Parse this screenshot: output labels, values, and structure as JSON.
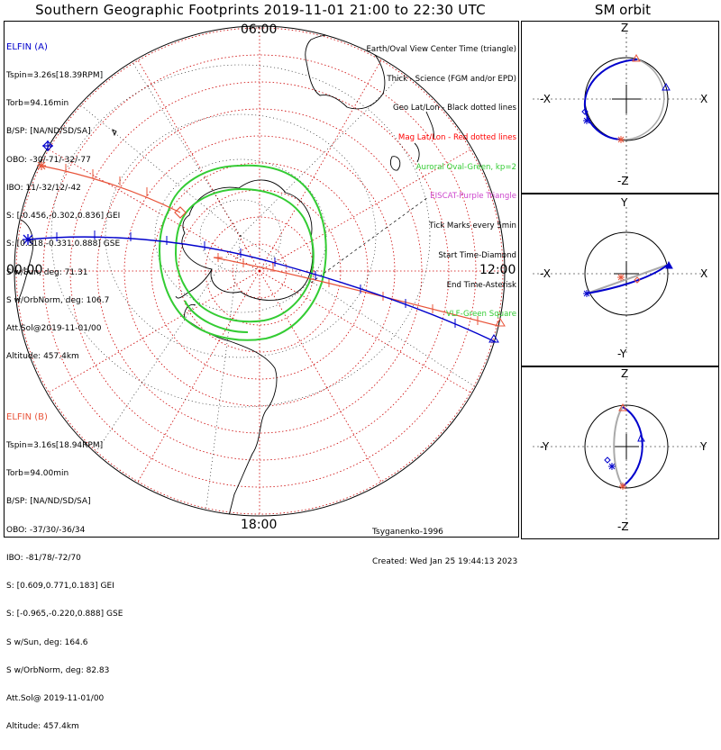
{
  "title": "Southern Geographic Footprints 2019-11-01 21:00 to 22:30 UTC",
  "sm_title": "SM orbit",
  "colors": {
    "elfin_a": "#0000cc",
    "elfin_b": "#e8543a",
    "aurora": "#33cc33",
    "grid": "#cc0000",
    "coast": "#000000",
    "orbit_gray": "#aaaaaa"
  },
  "mlt_labels": [
    "00:00",
    "06:00",
    "12:00",
    "18:00"
  ],
  "elfin_a": {
    "header": "ELFIN (A)",
    "lines": [
      "Tspin=3.26s[18.39RPM]",
      "Torb=94.16min",
      "B/SP: [NA/ND/SD/SA]",
      "OBO: -30/-71/-32/-77",
      "IBO: 11/-32/12/-42",
      "S: [-0.456,-0.302,0.836] GEI",
      "S: [0.318,-0.331,0.888] GSE",
      "S w/Sun, deg: 71.31",
      "S w/OrbNorm, deg: 106.7",
      "Att.Sol@2019-11-01/00",
      "Altitude: 457.4km"
    ]
  },
  "elfin_b": {
    "header": "ELFIN (B)",
    "lines": [
      "Tspin=3.16s[18.94RPM]",
      "Torb=94.00min",
      "B/SP: [NA/ND/SD/SA]",
      "OBO: -37/30/-36/34",
      "IBO: -81/78/-72/70",
      "S: [0.609,0.771,0.183] GEI",
      "S: [-0.965,-0.220,0.888] GSE",
      "S w/Sun, deg: 164.6",
      "S w/OrbNorm, deg: 82.83",
      "Att.Sol@ 2019-11-01/00",
      "Altitude: 457.4km"
    ]
  },
  "legend": [
    {
      "text": "Earth/Oval View Center Time (triangle)",
      "color": "#000000"
    },
    {
      "text": "Thick - Science (FGM and/or EPD)",
      "color": "#000000"
    },
    {
      "text": "Geo Lat/Lon - Black dotted lines",
      "color": "#000000"
    },
    {
      "text": "Mag Lat/Lon - Red dotted lines",
      "color": "#ff0000"
    },
    {
      "text": "Auroral Oval-Green, kp=2",
      "color": "#33cc33"
    },
    {
      "text": "EISCAT-Purple Triangle",
      "color": "#cc44cc"
    },
    {
      "text": "Tick Marks every 5min",
      "color": "#000000"
    },
    {
      "text": "Start Time-Diamond",
      "color": "#000000"
    },
    {
      "text": "End Time-Asterisk",
      "color": "#000000"
    },
    {
      "text": "VLF-Green Square",
      "color": "#33cc33"
    }
  ],
  "footer": {
    "credit": "Tsyganenko-1996",
    "created": "Created: Wed Jan 25 19:44:13 2023"
  },
  "sm_panels": [
    {
      "name": "XZ",
      "top": "Z",
      "bottom": "-Z",
      "left": "-X",
      "right": "X"
    },
    {
      "name": "XY",
      "top": "Y",
      "bottom": "-Y",
      "left": "-X",
      "right": "X"
    },
    {
      "name": "YZ",
      "top": "Z",
      "bottom": "-Z",
      "left": "-Y",
      "right": "Y"
    }
  ]
}
